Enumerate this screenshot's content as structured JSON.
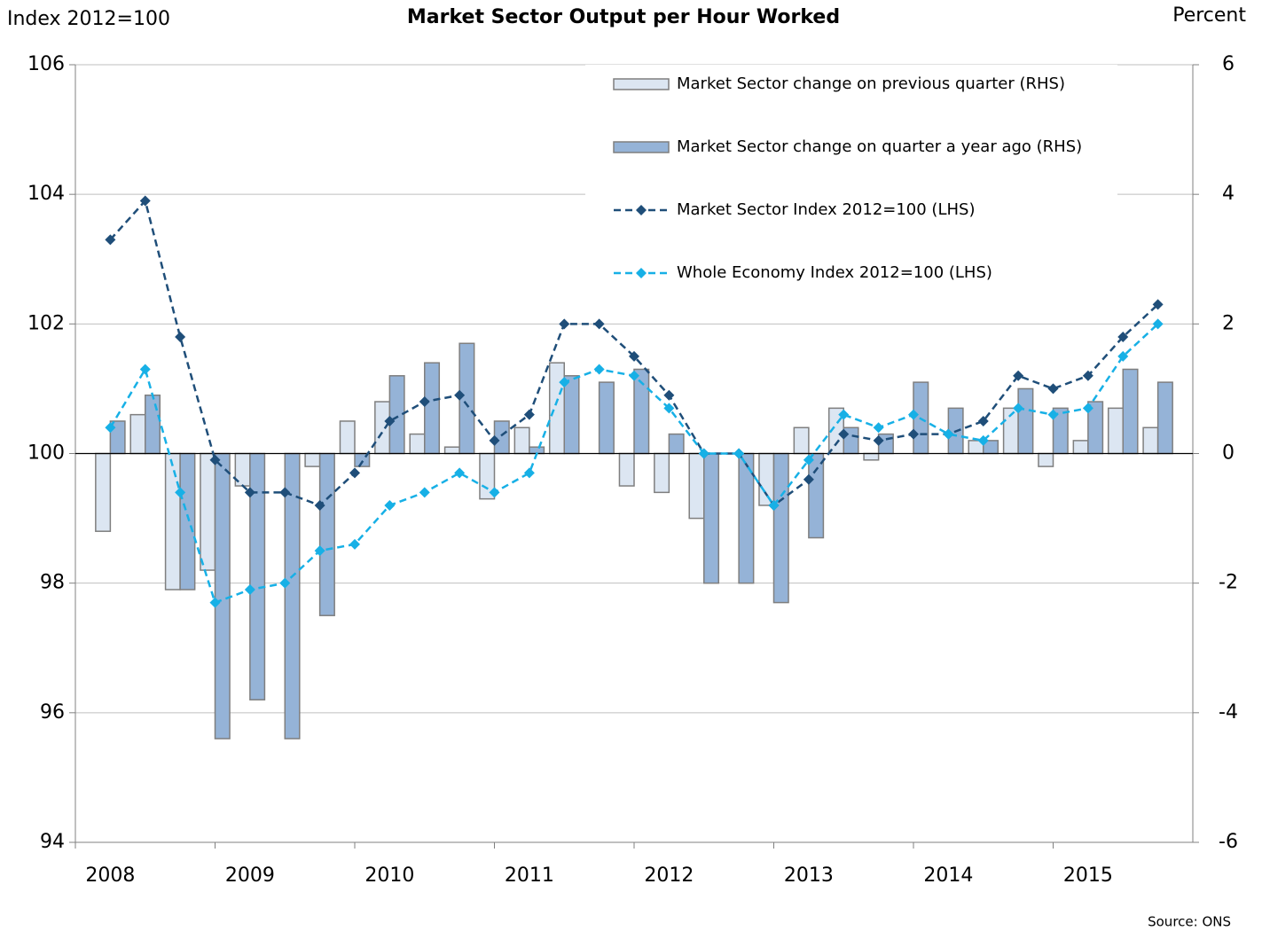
{
  "chart_data": {
    "type": "combo",
    "title": "Market Sector Output per Hour Worked",
    "y_label": "Index 2012=100",
    "y2_label": "Percent",
    "source": "Source: ONS",
    "categories": [
      "2008",
      null,
      null,
      null,
      "2009",
      null,
      null,
      null,
      "2010",
      null,
      null,
      null,
      "2011",
      null,
      null,
      null,
      "2012",
      null,
      null,
      null,
      "2013",
      null,
      null,
      null,
      "2014",
      null,
      null,
      null,
      "2015",
      null,
      null
    ],
    "ylim": [
      94,
      106
    ],
    "yticks": [
      94,
      96,
      98,
      100,
      102,
      104,
      106
    ],
    "y2lim": [
      -6,
      6
    ],
    "y2ticks": [
      -6,
      -4,
      -2,
      0,
      2,
      4,
      6
    ],
    "grid": true,
    "legend": "upper right",
    "series": [
      {
        "name": "Market Sector change on previous quarter (RHS)",
        "type": "bar",
        "axis": "y2",
        "color": "#dce6f2",
        "values": [
          -1.2,
          0.6,
          -2.1,
          -1.8,
          -0.5,
          0.0,
          -0.2,
          0.5,
          0.8,
          0.3,
          0.1,
          -0.7,
          0.4,
          1.4,
          0.0,
          -0.5,
          -0.6,
          -1.0,
          0.0,
          -0.8,
          0.4,
          0.7,
          -0.1,
          0.0,
          0.0,
          0.2,
          0.7,
          -0.2,
          0.2,
          0.7,
          0.4
        ]
      },
      {
        "name": "Market Sector change on quarter a year ago (RHS)",
        "type": "bar",
        "axis": "y2",
        "color": "#95b3d7",
        "values": [
          0.5,
          0.9,
          -2.1,
          -4.4,
          -3.8,
          -4.4,
          -2.5,
          -0.2,
          1.2,
          1.4,
          1.7,
          0.5,
          0.1,
          1.2,
          1.1,
          1.3,
          0.3,
          -2.0,
          -2.0,
          -2.3,
          -1.3,
          0.4,
          0.3,
          1.1,
          0.7,
          0.2,
          1.0,
          0.7,
          0.8,
          1.3,
          1.1
        ]
      },
      {
        "name": "Market Sector Index  2012=100 (LHS)",
        "type": "line",
        "color": "#1f4e79",
        "values": [
          103.3,
          103.9,
          101.8,
          99.9,
          99.4,
          99.4,
          99.2,
          99.7,
          100.5,
          100.8,
          100.9,
          100.2,
          100.6,
          102.0,
          102.0,
          101.5,
          100.9,
          100.0,
          100.0,
          99.2,
          99.6,
          100.3,
          100.2,
          100.3,
          100.3,
          100.5,
          101.2,
          101.0,
          101.2,
          101.8,
          102.3
        ]
      },
      {
        "name": "Whole Economy Index 2012=100 (LHS)",
        "type": "line",
        "color": "#17b0e6",
        "values": [
          100.4,
          101.3,
          99.4,
          97.7,
          97.9,
          98.0,
          98.5,
          98.6,
          99.2,
          99.4,
          99.7,
          99.4,
          99.7,
          101.1,
          101.3,
          101.2,
          100.7,
          100.0,
          100.0,
          99.2,
          99.9,
          100.6,
          100.4,
          100.6,
          100.3,
          100.2,
          100.7,
          100.6,
          100.7,
          101.5,
          102.0
        ]
      }
    ]
  }
}
